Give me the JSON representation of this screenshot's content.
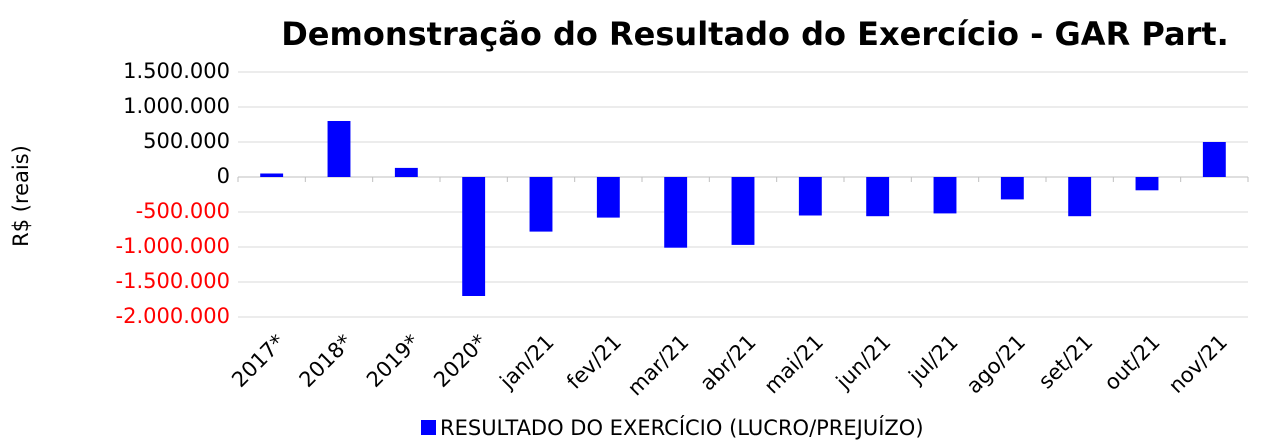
{
  "chart_data": {
    "type": "bar",
    "title": "Demonstração do Resultado do Exercício - GAR Part.",
    "y_label": "R$ (reais)",
    "categories": [
      "2017*",
      "2018*",
      "2019*",
      "2020*",
      "jan/21",
      "fev/21",
      "mar/21",
      "abr/21",
      "mai/21",
      "jun/21",
      "jul/21",
      "ago/21",
      "set/21",
      "out/21",
      "nov/21"
    ],
    "series": [
      {
        "name": "RESULTADO DO EXERCÍCIO (LUCRO/PREJUÍZO)",
        "color": "#0000ff",
        "values": [
          50000,
          800000,
          130000,
          -1700000,
          -780000,
          -580000,
          -1010000,
          -970000,
          -550000,
          -560000,
          -520000,
          -320000,
          -560000,
          -190000,
          500000
        ]
      }
    ],
    "ylim": [
      -2000000,
      1500000
    ],
    "yticks": [
      {
        "value": 1500000,
        "label": "1.500.000"
      },
      {
        "value": 1000000,
        "label": "1.000.000"
      },
      {
        "value": 500000,
        "label": "500.000"
      },
      0,
      {
        "value": -500000,
        "label": "-500.000"
      },
      {
        "value": -1000000,
        "label": "-1.000.000"
      },
      {
        "value": -1500000,
        "label": "-1.500.000"
      },
      {
        "value": -2000000,
        "label": "-2.000.000"
      }
    ],
    "negative_tick_color": "#ff0000",
    "grid": true,
    "legend": "bottom"
  }
}
